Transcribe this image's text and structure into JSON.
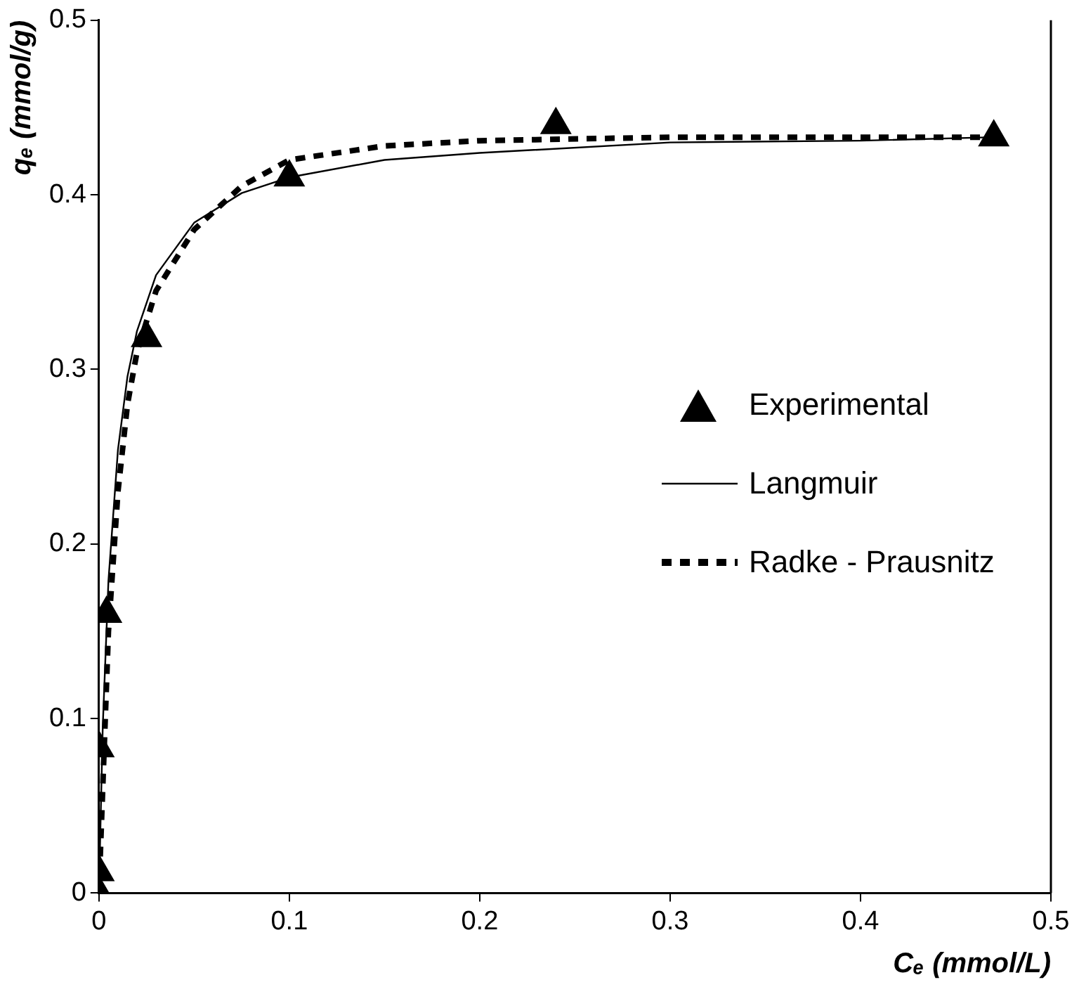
{
  "chart_data": {
    "type": "scatter",
    "xlabel": "Cₑ (mmol/L)",
    "ylabel": "qₑ (mmol/g)",
    "xlim": [
      0,
      0.5
    ],
    "ylim": [
      0,
      0.5
    ],
    "xticks": [
      0,
      0.1,
      0.2,
      0.3,
      0.4,
      0.5
    ],
    "yticks": [
      0,
      0.1,
      0.2,
      0.3,
      0.4,
      0.5
    ],
    "grid": false,
    "legend": "center right",
    "series": [
      {
        "name": "Experimental",
        "marker": "triangle",
        "color": "#000000",
        "x": [
          0,
          0,
          0,
          0.004,
          0.025,
          0.1,
          0.24,
          0.47
        ],
        "values": [
          0,
          0.012,
          0.083,
          0.16,
          0.318,
          0.41,
          0.44,
          0.433
        ]
      },
      {
        "name": "Langmuir",
        "type": "line",
        "marker": "none",
        "line_style": "solid",
        "color": "#000000",
        "x": [
          0,
          0.002,
          0.005,
          0.01,
          0.015,
          0.02,
          0.03,
          0.05,
          0.075,
          0.1,
          0.15,
          0.2,
          0.3,
          0.4,
          0.47
        ],
        "values": [
          0,
          0.095,
          0.179,
          0.254,
          0.296,
          0.322,
          0.354,
          0.384,
          0.401,
          0.41,
          0.42,
          0.424,
          0.43,
          0.431,
          0.433
        ]
      },
      {
        "name": "Radke - Prausnitz",
        "type": "line",
        "marker": "none",
        "line_style": "dashed",
        "color": "#000000",
        "x": [
          0,
          0.002,
          0.005,
          0.01,
          0.015,
          0.02,
          0.03,
          0.05,
          0.075,
          0.1,
          0.15,
          0.2,
          0.3,
          0.4,
          0.47
        ],
        "values": [
          0,
          0.06,
          0.15,
          0.23,
          0.28,
          0.31,
          0.345,
          0.38,
          0.405,
          0.42,
          0.428,
          0.431,
          0.433,
          0.433,
          0.433
        ]
      }
    ]
  }
}
